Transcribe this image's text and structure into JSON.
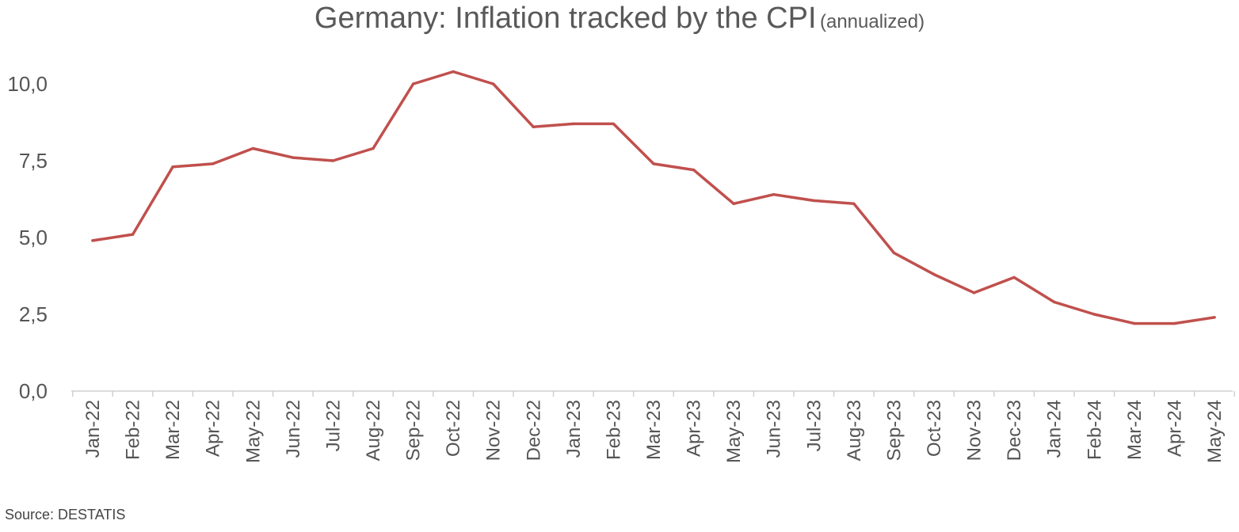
{
  "chart_data": {
    "type": "line",
    "title": "Germany: Inflation tracked by the CPI",
    "subtitle": "(annualized)",
    "xlabel": "",
    "ylabel": "",
    "ylim": [
      0,
      10.5
    ],
    "yticks": [
      "0,0",
      "2,5",
      "5,0",
      "7,5",
      "10,0"
    ],
    "ytick_values": [
      0,
      2.5,
      5,
      7.5,
      10
    ],
    "grid": false,
    "legend": "none",
    "categories": [
      "Jan-22",
      "Feb-22",
      "Mar-22",
      "Apr-22",
      "May-22",
      "Jun-22",
      "Jul-22",
      "Aug-22",
      "Sep-22",
      "Oct-22",
      "Nov-22",
      "Dec-22",
      "Jan-23",
      "Feb-23",
      "Mar-23",
      "Apr-23",
      "May-23",
      "Jun-23",
      "Jul-23",
      "Aug-23",
      "Sep-23",
      "Oct-23",
      "Nov-23",
      "Dec-23",
      "Jan-24",
      "Feb-24",
      "Mar-24",
      "Apr-24",
      "May-24"
    ],
    "series": [
      {
        "color": "#c0504d",
        "values": [
          4.9,
          5.1,
          7.3,
          7.4,
          7.9,
          7.6,
          7.5,
          7.9,
          10.0,
          10.4,
          10.0,
          8.6,
          8.7,
          8.7,
          7.4,
          7.2,
          6.1,
          6.4,
          6.2,
          6.1,
          4.5,
          3.8,
          3.2,
          3.7,
          2.9,
          2.5,
          2.2,
          2.2,
          2.4
        ]
      }
    ]
  },
  "footer": {
    "source": "Source: DESTATIS"
  }
}
